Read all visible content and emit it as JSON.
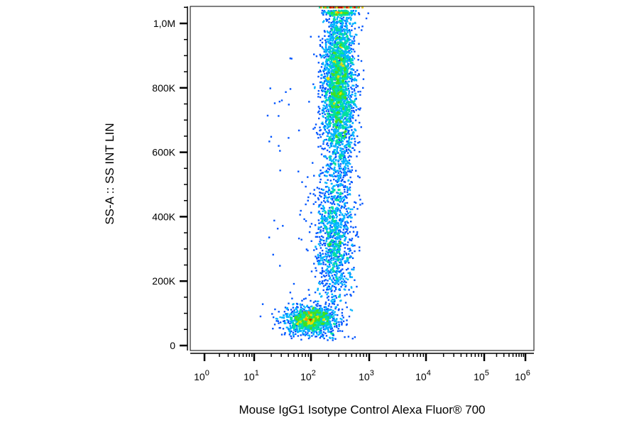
{
  "chart_data": {
    "type": "scatter",
    "subtype": "flow-cytometry density dot plot",
    "xlabel": "Mouse IgG1 Isotype Control Alexa Fluor® 700",
    "ylabel": "SS-A :: SS INT LIN",
    "x_scale": "log",
    "xlim": [
      1,
      1000000
    ],
    "ylim": [
      0,
      1050000
    ],
    "x_ticks": [
      {
        "base": "10",
        "exp": "0",
        "value": 1
      },
      {
        "base": "10",
        "exp": "1",
        "value": 10
      },
      {
        "base": "10",
        "exp": "2",
        "value": 100
      },
      {
        "base": "10",
        "exp": "3",
        "value": 1000
      },
      {
        "base": "10",
        "exp": "4",
        "value": 10000
      },
      {
        "base": "10",
        "exp": "5",
        "value": 100000
      },
      {
        "base": "10",
        "exp": "6",
        "value": 1000000
      }
    ],
    "y_ticks": [
      {
        "label": "0",
        "value": 0
      },
      {
        "label": "200K",
        "value": 200000
      },
      {
        "label": "400K",
        "value": 400000
      },
      {
        "label": "600K",
        "value": 600000
      },
      {
        "label": "800K",
        "value": 800000
      },
      {
        "label": "1,0M",
        "value": 1000000
      }
    ],
    "grid": false,
    "colormap": [
      "#0000cc",
      "#0055ff",
      "#00b4ff",
      "#00e0a0",
      "#40e020",
      "#e8e000",
      "#ff8c00",
      "#e00000"
    ],
    "populations": [
      {
        "x_center": 100,
        "x_spread_decades": 0.22,
        "y_center": 80000,
        "y_spread": 22000,
        "share": 0.22,
        "density": "high"
      },
      {
        "x_center": 300,
        "x_spread_decades": 0.14,
        "y_center": 800000,
        "y_spread": 150000,
        "share": 0.55,
        "density": "medium"
      },
      {
        "x_center": 250,
        "x_spread_decades": 0.16,
        "y_center": 320000,
        "y_spread": 110000,
        "share": 0.2,
        "density": "low"
      }
    ]
  }
}
